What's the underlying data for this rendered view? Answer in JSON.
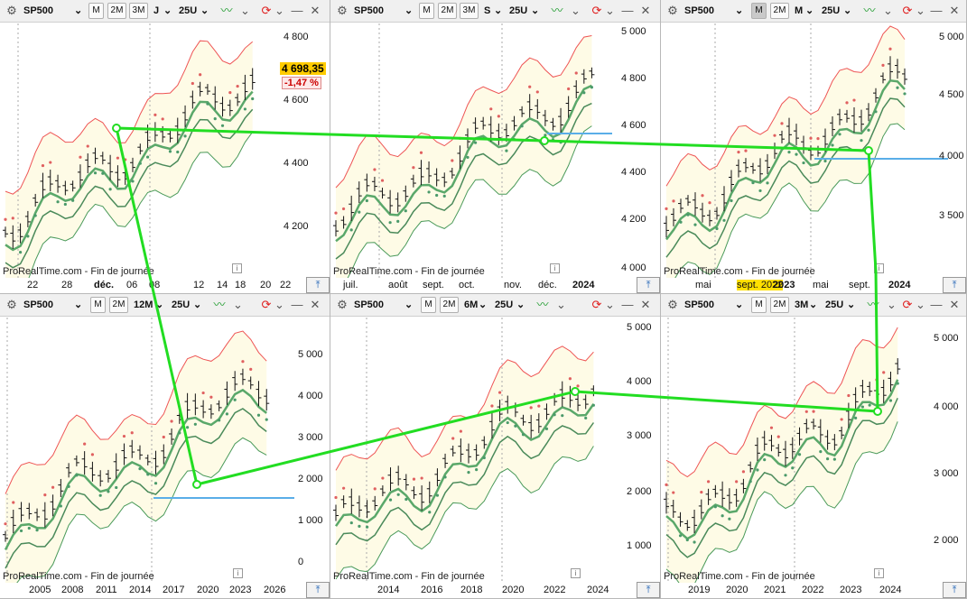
{
  "colors": {
    "toolbar_bg": "#f0f0f0",
    "price_bg": "#ffcc00",
    "change_color": "#cc0000",
    "band_fill": "#fefbe6",
    "overlay_line": "#22dd22",
    "hline": "#5aaee8",
    "accent_blue": "#1a5fb4"
  },
  "panels": [
    {
      "id": "daily",
      "symbol": "SP500",
      "buttons": [
        "M",
        "2M",
        "3M"
      ],
      "active_button": "",
      "period": "J",
      "units": "25U",
      "source": "ProRealTime.com - Fin de journée",
      "y_ticks": [
        "4 800",
        "4 600",
        "4 400",
        "4 200"
      ],
      "x_ticks": [
        "22",
        "28",
        "déc.",
        "06",
        "08",
        "12",
        "14",
        "18",
        "20",
        "22"
      ],
      "x_bold": [
        "déc."
      ],
      "last_price": "4 698,35",
      "change": "-1,47 %"
    },
    {
      "id": "weekly",
      "symbol": "SP500",
      "buttons": [
        "M",
        "2M",
        "3M"
      ],
      "active_button": "",
      "period": "S",
      "units": "25U",
      "source": "ProRealTime.com - Fin de journée",
      "y_ticks": [
        "5 000",
        "4 800",
        "4 600",
        "4 400",
        "4 200",
        "4 000"
      ],
      "x_ticks": [
        "juil.",
        "août",
        "sept.",
        "oct.",
        "nov.",
        "déc.",
        "2024"
      ],
      "x_bold": [
        "2024"
      ]
    },
    {
      "id": "monthly",
      "symbol": "SP500",
      "buttons": [
        "M",
        "2M"
      ],
      "active_button": "M",
      "period": "M",
      "units": "25U",
      "source": "ProRealTime.com - Fin de journée",
      "y_ticks": [
        "5 000",
        "4 500",
        "4 000",
        "3 500"
      ],
      "x_ticks": [
        "mai",
        "sept. 2022",
        "2023",
        "mai",
        "sept.",
        "2024"
      ],
      "x_bold": [
        "2023",
        "2024"
      ],
      "x_highlight": [
        "sept. 2022"
      ]
    },
    {
      "id": "yearly",
      "symbol": "SP500",
      "buttons": [
        "M",
        "2M"
      ],
      "active_button": "",
      "period": "12M",
      "units": "25U",
      "source": "ProRealTime.com - Fin de journée",
      "y_ticks": [
        "5 000",
        "4 000",
        "3 000",
        "2 000",
        "1 000",
        "0"
      ],
      "x_ticks": [
        "2005",
        "2008",
        "2011",
        "2014",
        "2017",
        "2020",
        "2023",
        "2026"
      ],
      "x_bold": []
    },
    {
      "id": "semiannual",
      "symbol": "SP500",
      "buttons": [
        "M",
        "2M"
      ],
      "active_button": "",
      "period": "6M",
      "units": "25U",
      "source": "ProRealTime.com - Fin de journée",
      "y_ticks": [
        "5 000",
        "4 000",
        "3 000",
        "2 000",
        "1 000"
      ],
      "x_ticks": [
        "2014",
        "2016",
        "2018",
        "2020",
        "2022",
        "2024"
      ],
      "x_bold": []
    },
    {
      "id": "quarterly",
      "symbol": "SP500",
      "buttons": [
        "M",
        "2M"
      ],
      "active_button": "",
      "period": "3M",
      "units": "25U",
      "source": "ProRealTime.com - Fin de journée",
      "y_ticks": [
        "5 000",
        "4 000",
        "3 000",
        "2 000"
      ],
      "x_ticks": [
        "2019",
        "2020",
        "2021",
        "2022",
        "2023",
        "2024"
      ],
      "x_bold": []
    }
  ],
  "icons": {
    "settings": "gear-icon",
    "indicator": "indicators-icon",
    "refresh": "refresh-icon",
    "minimize": "minimize-icon",
    "close": "close-icon",
    "scroll": "scroll-to-end-icon",
    "info": "info-icon"
  }
}
